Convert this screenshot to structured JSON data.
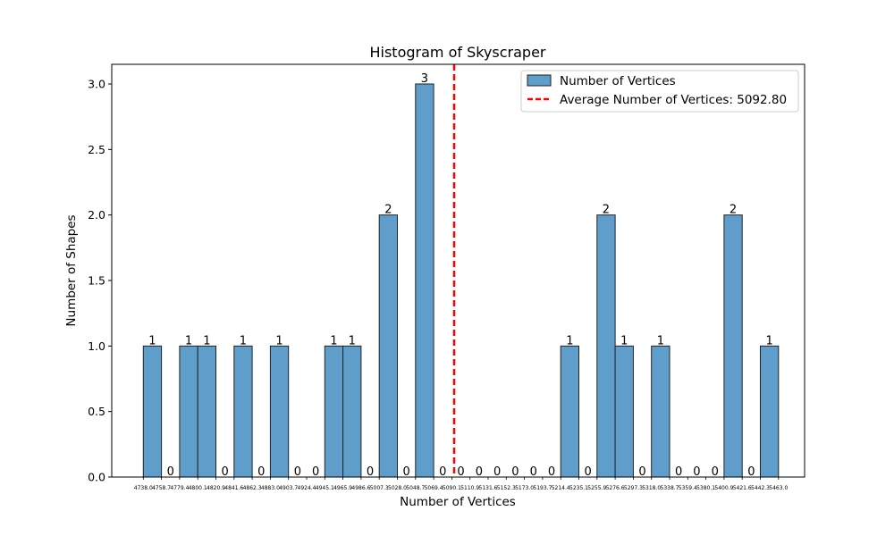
{
  "chart_data": {
    "type": "bar",
    "title": "Histogram of Skyscraper",
    "xlabel": "Number of Vertices",
    "ylabel": "Number of Shapes",
    "ylim": [
      0,
      3.15
    ],
    "yticks": [
      "0.0",
      "0.5",
      "1.0",
      "1.5",
      "2.0",
      "2.5",
      "3.0"
    ],
    "ytick_values": [
      0,
      0.5,
      1.0,
      1.5,
      2.0,
      2.5,
      3.0
    ],
    "bin_starts": [
      4738.0,
      4758.7,
      4779.4,
      4800.1,
      4820.9,
      4841.6,
      4862.3,
      4883.0,
      4903.7,
      4924.4,
      4945.1,
      4965.9,
      4986.6,
      5007.3,
      5028.0,
      5048.7,
      5069.4,
      5090.1,
      5110.9,
      5131.6,
      5152.3,
      5173.0,
      5193.7,
      5214.4,
      5235.1,
      5255.9,
      5276.6,
      5297.3,
      5318.0,
      5338.7,
      5359.4,
      5380.1,
      5400.9,
      5421.6,
      5442.3
    ],
    "xtick_labels": [
      "4738.0",
      "4758.7",
      "4779.4",
      "4800.1",
      "4820.9",
      "4841.6",
      "4862.3",
      "4883.0",
      "4903.7",
      "4924.4",
      "4945.1",
      "4965.9",
      "4986.6",
      "5007.3",
      "5028.0",
      "5048.7",
      "5069.4",
      "5090.1",
      "5110.9",
      "5131.6",
      "5152.3",
      "5173.0",
      "5193.7",
      "5214.4",
      "5235.1",
      "5255.9",
      "5276.6",
      "5297.3",
      "5318.0",
      "5338.7",
      "5359.4",
      "5380.1",
      "5400.9",
      "5421.6",
      "5442.3",
      "5463.0"
    ],
    "values": [
      1,
      0,
      1,
      1,
      0,
      1,
      0,
      1,
      0,
      0,
      1,
      1,
      0,
      2,
      0,
      3,
      0,
      0,
      0,
      0,
      0,
      0,
      0,
      1,
      0,
      2,
      1,
      0,
      1,
      0,
      0,
      0,
      2,
      0,
      1
    ],
    "bin_edges_range": [
      4738.0,
      5463.0
    ],
    "average": 5092.8,
    "series": [
      {
        "name": "Number of Vertices",
        "color": "#5f9ecb"
      }
    ],
    "average_line": {
      "name": "Average Number of Vertices: 5092.80",
      "color": "#ff0000"
    },
    "legend_position": "top-right",
    "grid": false
  }
}
